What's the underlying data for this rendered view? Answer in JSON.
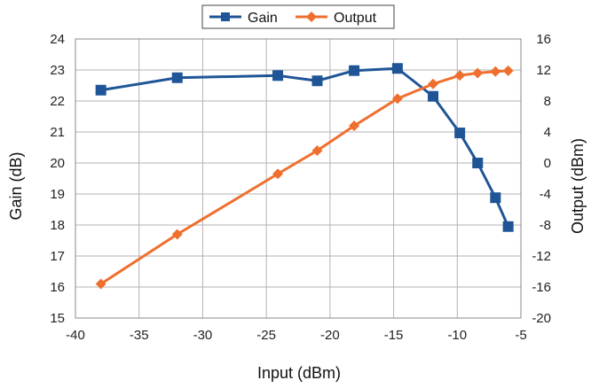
{
  "chart_data": {
    "type": "line",
    "xlabel": "Input (dBm)",
    "ylabel": "Gain (dB)",
    "y2label": "Output (dBm)",
    "xlim": [
      -40,
      -5
    ],
    "ylim": [
      15,
      24
    ],
    "y2lim": [
      -20,
      16
    ],
    "xticks": [
      "-40",
      "-35",
      "-30",
      "-25",
      "-20",
      "-15",
      "-10",
      "-5"
    ],
    "yticks": [
      "15",
      "16",
      "17",
      "18",
      "19",
      "20",
      "21",
      "22",
      "23",
      "24"
    ],
    "y2ticks": [
      "-20",
      "-16",
      "-12",
      "-8",
      "-4",
      "0",
      "4",
      "8",
      "12",
      "16"
    ],
    "grid": true,
    "legend_position": "top-center",
    "series": [
      {
        "name": "Gain",
        "axis": "left",
        "marker": "square",
        "color": "#1F5596",
        "x": [
          -38.0,
          -32.0,
          -24.1,
          -21.0,
          -18.1,
          -14.7,
          -11.9,
          -9.8,
          -8.4,
          -7.0,
          -6.0
        ],
        "y": [
          22.35,
          22.75,
          22.82,
          22.65,
          22.98,
          23.05,
          22.15,
          20.97,
          20.0,
          18.88,
          17.95
        ]
      },
      {
        "name": "Output",
        "axis": "right",
        "marker": "diamond",
        "color": "#EF6F2E",
        "x": [
          -38.0,
          -32.0,
          -24.1,
          -21.0,
          -18.1,
          -14.7,
          -11.9,
          -9.8,
          -8.4,
          -7.0,
          -6.0
        ],
        "y": [
          -15.6,
          -9.2,
          -1.4,
          1.6,
          4.8,
          8.3,
          10.2,
          11.3,
          11.6,
          11.8,
          11.9
        ]
      }
    ]
  }
}
